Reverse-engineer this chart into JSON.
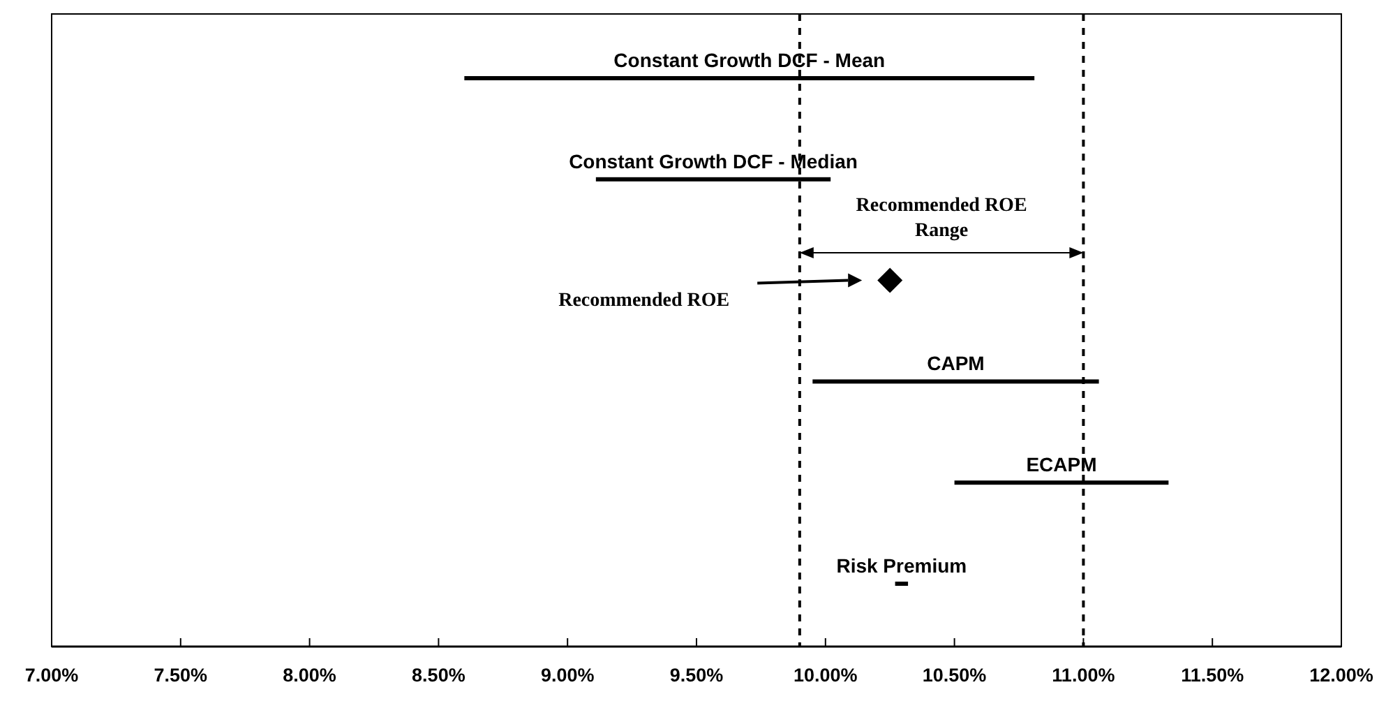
{
  "chart_data": {
    "type": "bar",
    "orientation": "horizontal",
    "categories": [
      "Constant Growth DCF - Mean",
      "Constant Growth DCF - Median",
      "Recommended ROE",
      "CAPM",
      "ECAPM",
      "Risk Premium"
    ],
    "series": [
      {
        "color": "#000000",
        "base": [
          8.6,
          9.11,
          null,
          9.95,
          10.5,
          10.27
        ],
        "values": [
          2.21,
          0.91,
          null,
          1.11,
          0.83,
          0.05
        ]
      },
      {
        "type": "scatter",
        "color": "#000000",
        "marker": "diamond",
        "values": [
          null,
          null,
          10.25,
          null,
          null,
          null
        ]
      }
    ],
    "xlim": [
      7,
      12
    ],
    "xticks": [
      {
        "value": 7,
        "label": "7.00%"
      },
      {
        "value": 7.5,
        "label": "7.50%"
      },
      {
        "value": 8,
        "label": "8.00%"
      },
      {
        "value": 8.5,
        "label": "8.50%"
      },
      {
        "value": 9,
        "label": "9.00%"
      },
      {
        "value": 9.5,
        "label": "9.50%"
      },
      {
        "value": 10,
        "label": "10.00%"
      },
      {
        "value": 10.5,
        "label": "10.50%"
      },
      {
        "value": 11,
        "label": "11.00%"
      },
      {
        "value": 11.5,
        "label": "11.50%"
      },
      {
        "value": 12,
        "label": "12.00%"
      }
    ],
    "ref_lines": [
      {
        "axis": "x",
        "value": 9.9,
        "color": "#000000",
        "line_style": "dashed"
      },
      {
        "axis": "x",
        "value": 11.0,
        "color": "#000000",
        "line_style": "dashed"
      }
    ],
    "annotations": [
      "Recommended ROE Range"
    ],
    "grid": false
  }
}
